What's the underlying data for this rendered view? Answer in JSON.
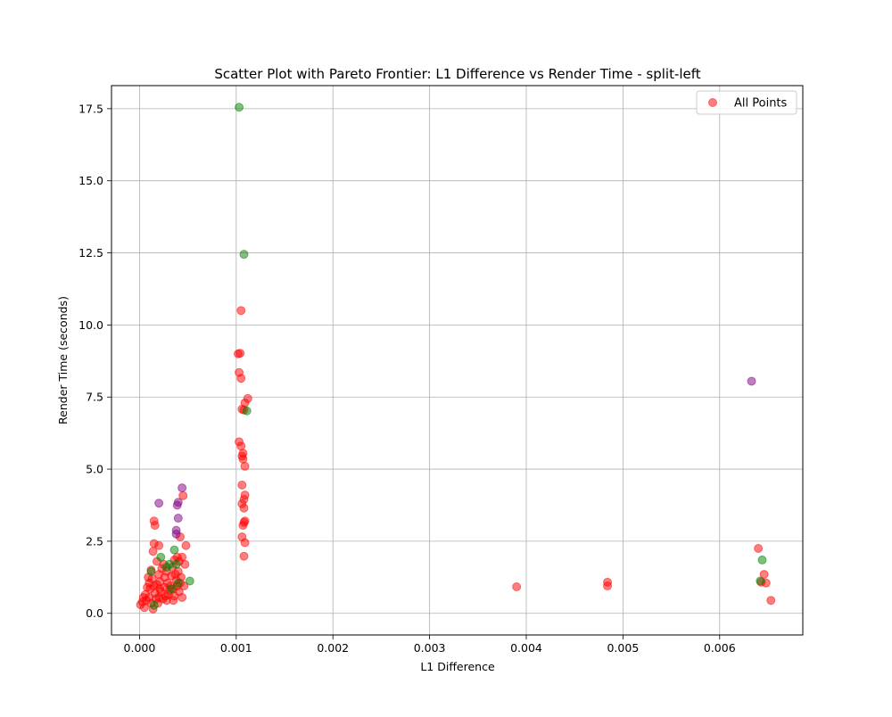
{
  "chart_data": {
    "type": "scatter",
    "title": "Scatter Plot with Pareto Frontier: L1 Difference vs Render Time - split-left",
    "xlabel": "L1 Difference",
    "ylabel": "Render Time (seconds)",
    "xlim": [
      -0.00029,
      0.00686
    ],
    "ylim": [
      -0.75,
      18.3
    ],
    "xticks": [
      0.0,
      0.001,
      0.002,
      0.003,
      0.004,
      0.005,
      0.006
    ],
    "xtick_labels": [
      "0.000",
      "0.001",
      "0.002",
      "0.003",
      "0.004",
      "0.005",
      "0.006"
    ],
    "yticks": [
      0.0,
      2.5,
      5.0,
      7.5,
      10.0,
      12.5,
      15.0,
      17.5
    ],
    "ytick_labels": [
      "0.0",
      "2.5",
      "5.0",
      "7.5",
      "10.0",
      "12.5",
      "15.0",
      "17.5"
    ],
    "grid": true,
    "legend": {
      "position": "top-right",
      "entries": [
        "All Points"
      ]
    },
    "series": [
      {
        "name": "All Points",
        "color": "#ff0000",
        "alpha": 0.5,
        "points": [
          [
            0.00105,
            10.5
          ],
          [
            0.00104,
            9.02
          ],
          [
            0.00102,
            9.0
          ],
          [
            0.00103,
            8.35
          ],
          [
            0.00105,
            8.15
          ],
          [
            0.00112,
            7.45
          ],
          [
            0.00109,
            7.3
          ],
          [
            0.00106,
            7.08
          ],
          [
            0.00108,
            7.05
          ],
          [
            0.00103,
            5.95
          ],
          [
            0.00105,
            5.8
          ],
          [
            0.00107,
            5.55
          ],
          [
            0.00106,
            5.45
          ],
          [
            0.00107,
            5.35
          ],
          [
            0.00109,
            5.1
          ],
          [
            0.00106,
            4.45
          ],
          [
            0.00109,
            4.1
          ],
          [
            0.00108,
            3.95
          ],
          [
            0.00106,
            3.8
          ],
          [
            0.00108,
            3.65
          ],
          [
            0.00109,
            3.2
          ],
          [
            0.00108,
            3.15
          ],
          [
            0.00107,
            3.05
          ],
          [
            0.00106,
            2.65
          ],
          [
            0.00109,
            2.45
          ],
          [
            0.00108,
            1.98
          ],
          [
            0.0064,
            2.25
          ],
          [
            0.00646,
            1.35
          ],
          [
            0.00643,
            1.08
          ],
          [
            0.00648,
            1.05
          ],
          [
            0.00653,
            0.45
          ],
          [
            0.0039,
            0.92
          ],
          [
            0.00484,
            1.08
          ],
          [
            0.00484,
            0.95
          ],
          [
            0.00015,
            3.2
          ],
          [
            0.00016,
            3.05
          ],
          [
            0.00015,
            2.42
          ],
          [
            0.0002,
            2.35
          ],
          [
            0.00045,
            4.08
          ],
          [
            0.00042,
            2.65
          ],
          [
            0.00048,
            2.35
          ],
          [
            0.00014,
            2.15
          ],
          [
            0.00047,
            1.7
          ],
          [
            0.00044,
            1.95
          ],
          [
            0.00036,
            1.85
          ],
          [
            0.00039,
            1.95
          ],
          [
            0.00041,
            1.8
          ],
          [
            0.00025,
            1.7
          ],
          [
            0.00018,
            1.8
          ],
          [
            0.00012,
            1.5
          ],
          [
            9e-05,
            1.25
          ],
          [
            0.00021,
            1.1
          ],
          [
            0.00028,
            1.45
          ],
          [
            0.00033,
            1.3
          ],
          [
            0.00038,
            1.15
          ],
          [
            0.00042,
            1.05
          ],
          [
            0.00046,
            0.95
          ],
          [
            0.00035,
            0.85
          ],
          [
            0.00026,
            0.9
          ],
          [
            0.00018,
            1.0
          ],
          [
            0.00011,
            0.85
          ],
          [
            6e-05,
            0.65
          ],
          [
            3e-05,
            0.4
          ],
          [
            1e-05,
            0.3
          ],
          [
            5e-05,
            0.2
          ],
          [
            0.00014,
            0.15
          ],
          [
            0.00019,
            0.35
          ],
          [
            0.00024,
            0.5
          ],
          [
            0.0003,
            0.65
          ],
          [
            0.00036,
            0.6
          ],
          [
            0.00041,
            0.75
          ],
          [
            0.00044,
            0.55
          ],
          [
            0.0001,
            0.55
          ],
          [
            0.00016,
            0.7
          ],
          [
            0.00022,
            0.75
          ],
          [
            0.00027,
            0.6
          ],
          [
            0.00032,
            0.95
          ],
          [
            0.00037,
            1.35
          ],
          [
            0.00013,
            1.2
          ],
          [
            8e-05,
            0.9
          ],
          [
            0.0002,
            1.35
          ],
          [
            0.00029,
            1.05
          ],
          [
            0.00034,
            1.6
          ],
          [
            0.0004,
            1.45
          ],
          [
            0.00023,
            1.55
          ],
          [
            0.00017,
            0.5
          ],
          [
            0.00012,
            0.35
          ],
          [
            7e-05,
            0.45
          ],
          [
            0.00039,
            0.95
          ],
          [
            0.00043,
            1.25
          ],
          [
            0.00026,
            1.25
          ],
          [
            0.00021,
            0.85
          ],
          [
            0.00015,
            0.95
          ],
          [
            0.0001,
            1.05
          ],
          [
            0.00031,
            0.8
          ],
          [
            0.00028,
            0.45
          ],
          [
            0.00035,
            0.45
          ],
          [
            0.0002,
            0.55
          ],
          [
            4e-05,
            0.55
          ]
        ]
      },
      {
        "name": "",
        "color": "#008000",
        "alpha": 0.5,
        "points": [
          [
            0.00103,
            17.55
          ],
          [
            0.00108,
            12.45
          ],
          [
            0.00111,
            7.02
          ],
          [
            0.00644,
            1.85
          ],
          [
            0.00642,
            1.12
          ],
          [
            0.00052,
            1.12
          ],
          [
            0.00036,
            2.2
          ],
          [
            0.00022,
            1.95
          ],
          [
            0.00031,
            1.7
          ],
          [
            0.00028,
            1.6
          ],
          [
            0.00012,
            1.45
          ],
          [
            0.00015,
            0.28
          ],
          [
            0.00033,
            0.85
          ],
          [
            0.0004,
            1.05
          ],
          [
            0.00038,
            1.7
          ]
        ]
      },
      {
        "name": "",
        "color": "#800080",
        "alpha": 0.5,
        "points": [
          [
            0.00633,
            8.05
          ],
          [
            0.00044,
            4.35
          ],
          [
            0.0002,
            3.82
          ],
          [
            0.0004,
            3.85
          ],
          [
            0.00039,
            3.75
          ],
          [
            0.0004,
            3.3
          ],
          [
            0.00038,
            2.88
          ],
          [
            0.00038,
            2.75
          ]
        ]
      }
    ]
  }
}
